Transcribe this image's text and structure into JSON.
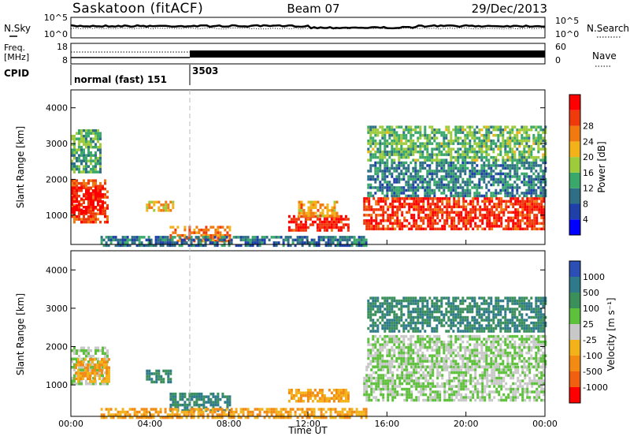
{
  "header": {
    "title": "Saskatoon (fitACF)",
    "beam": "Beam 07",
    "date": "29/Dec/2013"
  },
  "aux_panels": {
    "left_top": "N.Sky",
    "left_mid_line1": "Freq.",
    "left_mid_line2": "[MHz]",
    "left_bottom": "CPID",
    "right_top": "N.Search",
    "right_mid": "Nave",
    "nsky_ticks": [
      "10^5",
      "10^0"
    ],
    "freq_ticks": [
      "18",
      "8"
    ],
    "nave_ticks": [
      "60",
      "0"
    ],
    "nsearch_ticks": [
      "10^5",
      "10^0"
    ],
    "cpid_labels": [
      "normal (fast) 151",
      "3503"
    ]
  },
  "colors": {
    "power_scale": [
      "#0000ff",
      "#1e40a8",
      "#2e6f86",
      "#39a86a",
      "#9ecb3c",
      "#f3b21a",
      "#f07a10",
      "#ef3a0c",
      "#ff0000"
    ],
    "velocity_scale": [
      "#2b4fb5",
      "#2f7a8a",
      "#3a8f5a",
      "#5dc13c",
      "#c8c8c8",
      "#f3b21a",
      "#f28a14",
      "#f06010",
      "#ff0000"
    ]
  },
  "chart_data": [
    {
      "type": "heatmap",
      "name": "power",
      "xlabel": "",
      "ylabel": "Slant Range [km]",
      "xlim": [
        0,
        24
      ],
      "ylim": [
        180,
        4500
      ],
      "yticks": [
        1000,
        2000,
        3000,
        4000
      ],
      "colorbar_label": "Power [dB]",
      "colorbar_ticks": [
        "4",
        "8",
        "12",
        "16",
        "20",
        "24",
        "28"
      ],
      "colorbar_range": [
        0,
        30
      ],
      "regions": [
        {
          "t": [
            0.0,
            1.9
          ],
          "r": [
            800,
            2000
          ],
          "v": 24
        },
        {
          "t": [
            0.0,
            1.6
          ],
          "r": [
            1100,
            1800
          ],
          "v": 29
        },
        {
          "t": [
            0.0,
            1.5
          ],
          "r": [
            2200,
            3400
          ],
          "v": 12
        },
        {
          "t": [
            3.8,
            5.2
          ],
          "r": [
            1100,
            1400
          ],
          "v": 18
        },
        {
          "t": [
            5.0,
            8.0
          ],
          "r": [
            300,
            700
          ],
          "v": 22
        },
        {
          "t": [
            1.5,
            15.0
          ],
          "r": [
            180,
            420
          ],
          "v": 8
        },
        {
          "t": [
            11.0,
            14.0
          ],
          "r": [
            600,
            1000
          ],
          "v": 27
        },
        {
          "t": [
            11.5,
            13.5
          ],
          "r": [
            1000,
            1400
          ],
          "v": 20
        },
        {
          "t": [
            14.8,
            24.0
          ],
          "r": [
            600,
            1500
          ],
          "v": 26
        },
        {
          "t": [
            15.0,
            24.0
          ],
          "r": [
            1500,
            2500
          ],
          "v": 9
        },
        {
          "t": [
            15.0,
            24.0
          ],
          "r": [
            2500,
            3500
          ],
          "v": 13
        }
      ]
    },
    {
      "type": "heatmap",
      "name": "velocity",
      "xlabel": "Time UT",
      "ylabel": "Slant Range [km]",
      "xlim": [
        0,
        24
      ],
      "ylim": [
        180,
        4500
      ],
      "xticks": [
        "00:00",
        "04:00",
        "08:00",
        "12:00",
        "16:00",
        "20:00",
        "00:00"
      ],
      "yticks": [
        1000,
        2000,
        3000,
        4000
      ],
      "colorbar_label": "Velocity [m s⁻¹]",
      "colorbar_ticks": [
        "1000",
        "500",
        "100",
        "25",
        "-25",
        "-100",
        "-500",
        "-1000"
      ],
      "regions": [
        {
          "t": [
            0.0,
            1.9
          ],
          "r": [
            1000,
            2000
          ],
          "v": 0
        },
        {
          "t": [
            0.2,
            1.9
          ],
          "r": [
            1100,
            1700
          ],
          "v": -100
        },
        {
          "t": [
            3.8,
            5.0
          ],
          "r": [
            1100,
            1400
          ],
          "v": 100
        },
        {
          "t": [
            5.0,
            8.0
          ],
          "r": [
            300,
            800
          ],
          "v": 100
        },
        {
          "t": [
            1.5,
            15.0
          ],
          "r": [
            180,
            400
          ],
          "v": -100
        },
        {
          "t": [
            11.0,
            14.0
          ],
          "r": [
            600,
            900
          ],
          "v": -100
        },
        {
          "t": [
            14.8,
            24.0
          ],
          "r": [
            600,
            1500
          ],
          "v": 0
        },
        {
          "t": [
            15.0,
            24.0
          ],
          "r": [
            1500,
            2300
          ],
          "v": 0
        },
        {
          "t": [
            15.0,
            24.0
          ],
          "r": [
            2400,
            3300
          ],
          "v": 100
        }
      ]
    }
  ]
}
